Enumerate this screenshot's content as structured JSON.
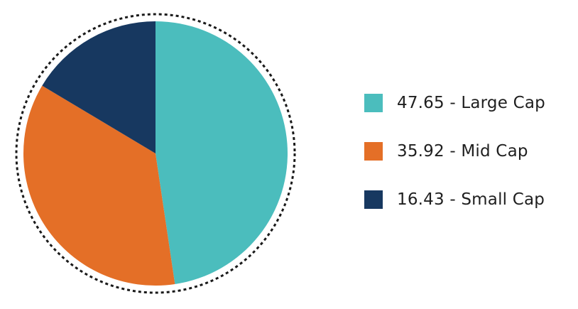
{
  "chart_data": {
    "type": "pie",
    "title": "",
    "slices": [
      {
        "label": "Large Cap",
        "value": 47.65,
        "color": "#4BBDBD",
        "legend_text": "47.65 - Large Cap"
      },
      {
        "label": "Mid Cap",
        "value": 35.92,
        "color": "#E46F27",
        "legend_text": "35.92 - Mid Cap"
      },
      {
        "label": "Small Cap",
        "value": 16.43,
        "color": "#173860",
        "legend_text": "16.43 - Small Cap"
      }
    ],
    "start_angle": "12 o'clock",
    "direction": "clockwise",
    "legend_position": "right",
    "outer_ring": "dotted"
  }
}
